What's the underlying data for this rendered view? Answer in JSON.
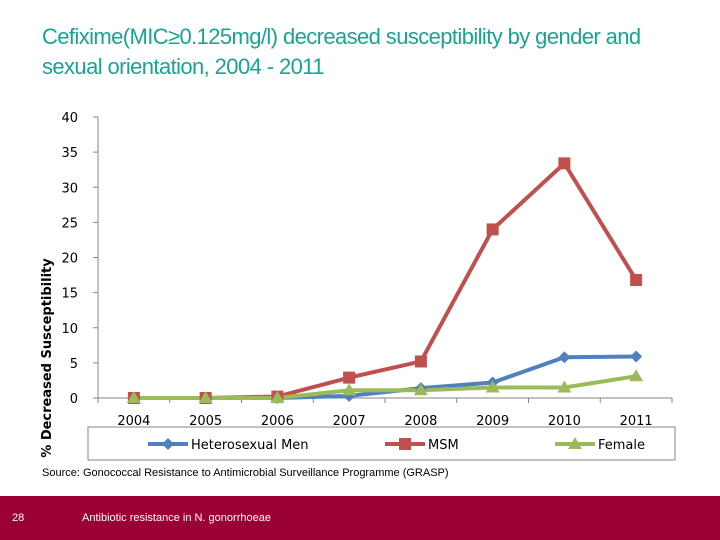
{
  "slide": {
    "title_line1": "Cefixime(MIC≥0.125mg/l) decreased susceptibility by gender and",
    "title_line2": "sexual orientation,  2004 - 2011",
    "source": "Source: Gonococcal Resistance to Antimicrobial Surveillance Programme (GRASP)",
    "page_number": "28",
    "footer_text": "Antibiotic resistance in N. gonorrhoeae"
  },
  "colors": {
    "title": "#1aa394",
    "footer": "#9b0034"
  },
  "chart_data": {
    "type": "line",
    "title": "",
    "xlabel": "",
    "ylabel": "% Decreased Susceptibility",
    "categories": [
      "2004",
      "2005",
      "2006",
      "2007",
      "2008",
      "2009",
      "2010",
      "2011"
    ],
    "yticks": [
      "0",
      "5",
      "10",
      "15",
      "20",
      "25",
      "30",
      "35",
      "40"
    ],
    "ylim": [
      0,
      40
    ],
    "grid": false,
    "legend_position": "bottom",
    "series": [
      {
        "name": "Heterosexual Men",
        "color": "#4f81bd",
        "marker": "diamond",
        "values": [
          0,
          0,
          0,
          0.3,
          1.4,
          2.2,
          5.8,
          5.9
        ]
      },
      {
        "name": "MSM",
        "color": "#c0504d",
        "marker": "square",
        "values": [
          0,
          0,
          0.2,
          2.9,
          5.2,
          24,
          33.4,
          16.8
        ]
      },
      {
        "name": "Female",
        "color": "#9bbb59",
        "marker": "triangle",
        "values": [
          0,
          0,
          0,
          1.1,
          1.1,
          1.5,
          1.5,
          3.1
        ]
      }
    ]
  }
}
